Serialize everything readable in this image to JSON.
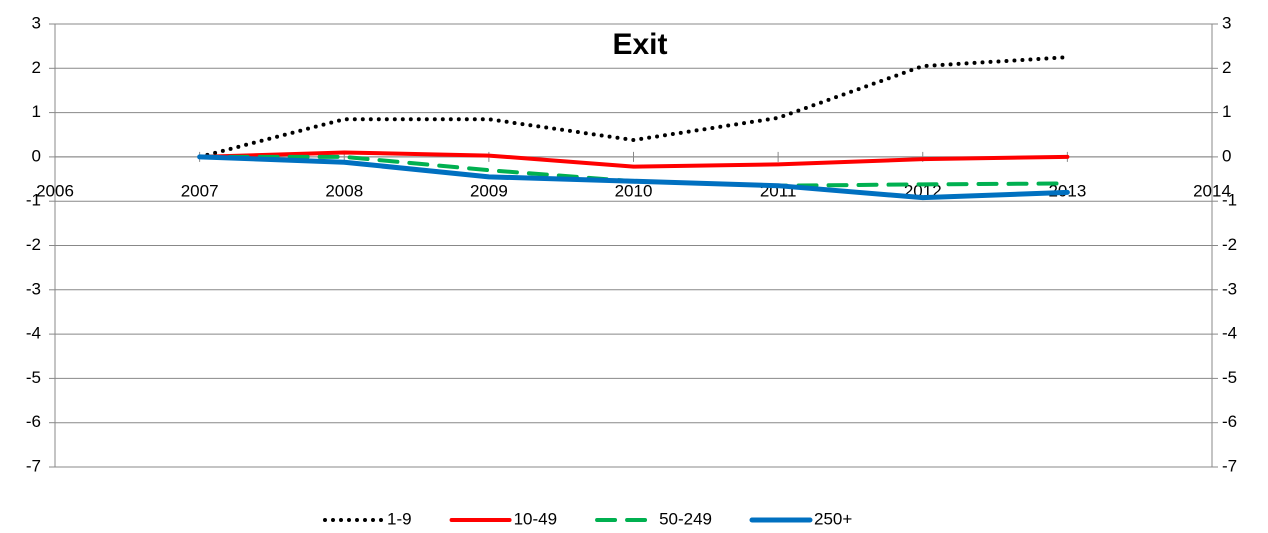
{
  "chart_data": {
    "type": "line",
    "title": "Exit",
    "x": [
      2007,
      2008,
      2009,
      2010,
      2011,
      2012,
      2013
    ],
    "series": [
      {
        "name": "1-9",
        "color": "#000000",
        "style": "dotted",
        "values": [
          0,
          0.85,
          0.85,
          0.38,
          0.88,
          2.05,
          2.25
        ]
      },
      {
        "name": "10-49",
        "color": "#ff0000",
        "style": "solid",
        "values": [
          0,
          0.1,
          0.03,
          -0.22,
          -0.17,
          -0.05,
          0
        ]
      },
      {
        "name": "50-249",
        "color": "#00b050",
        "style": "dashed",
        "values": [
          0,
          0,
          -0.3,
          -0.55,
          -0.65,
          -0.62,
          -0.6
        ]
      },
      {
        "name": "250+",
        "color": "#0070c0",
        "style": "solid",
        "values": [
          0,
          -0.12,
          -0.45,
          -0.55,
          -0.65,
          -0.92,
          -0.8
        ]
      }
    ],
    "xlim": [
      2006,
      2014
    ],
    "xticks": [
      2006,
      2007,
      2008,
      2009,
      2010,
      2011,
      2012,
      2013,
      2014
    ],
    "ylim": [
      -7,
      3
    ],
    "yticks": [
      -7,
      -6,
      -5,
      -4,
      -3,
      -2,
      -1,
      0,
      1,
      2,
      3
    ],
    "y2lim": [
      -7,
      3
    ],
    "y2ticks": [
      -7,
      -6,
      -5,
      -4,
      -3,
      -2,
      -1,
      0,
      1,
      2,
      3
    ],
    "grid": true,
    "legend": "bottom"
  }
}
